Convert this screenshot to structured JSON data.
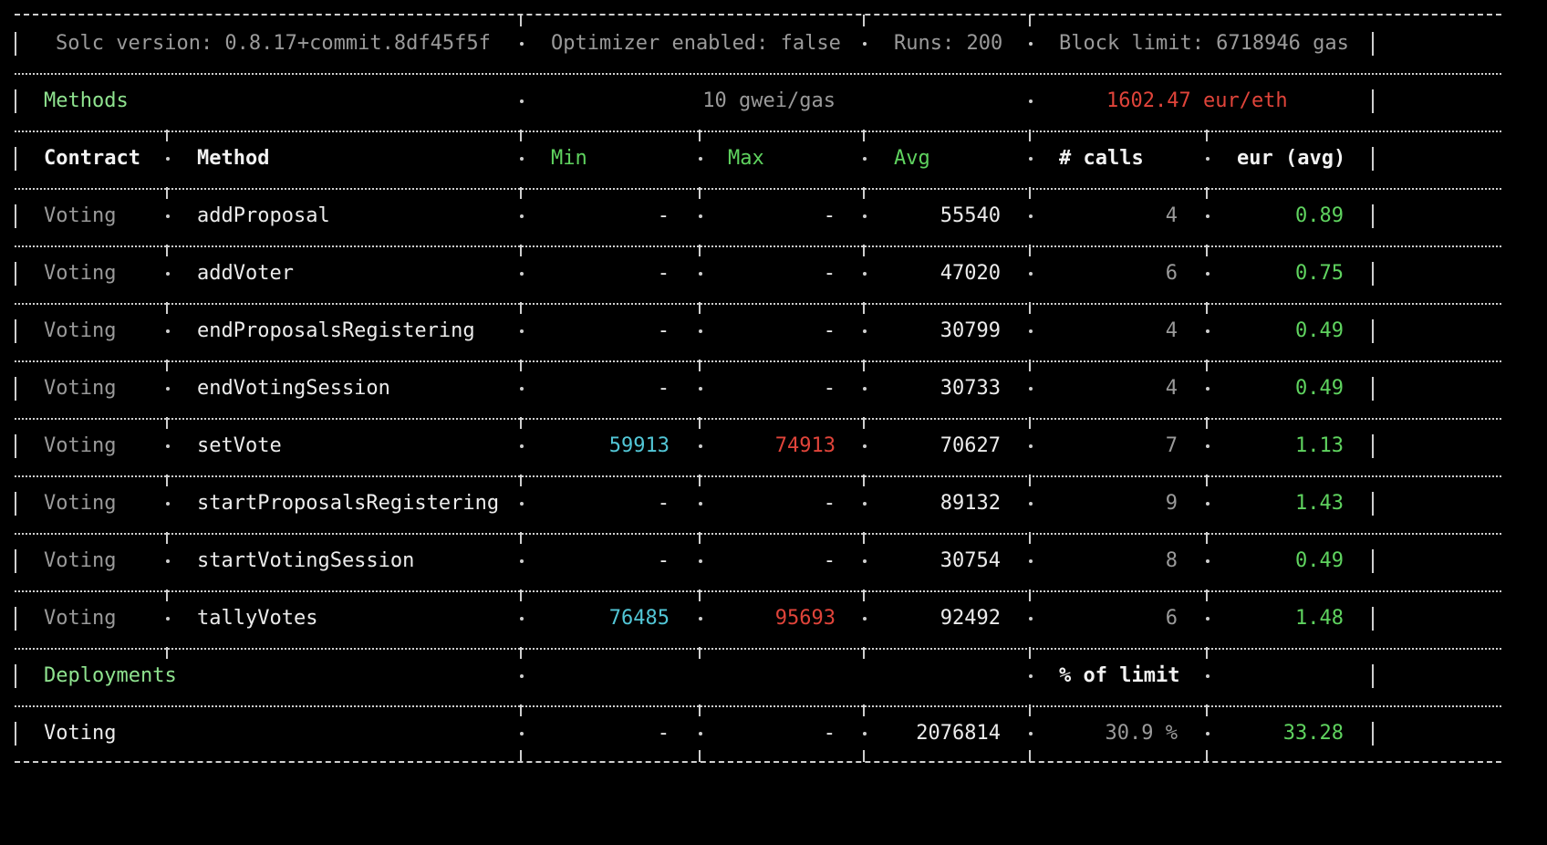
{
  "colors": {
    "background": "#000000",
    "border": "#cfcfcf",
    "dim_text": "#9a9a9a",
    "bright_text": "#ececec",
    "section_green": "#8fe38f",
    "gas_green": "#5fd35f",
    "price_red": "#e0443a",
    "min_cyan": "#52c6d6",
    "max_red": "#e0443a",
    "cost_green": "#5fd35f"
  },
  "config": {
    "solc": "Solc version: 0.8.17+commit.8df45f5f",
    "optimizer": "Optimizer enabled: false",
    "runs": "Runs: 200",
    "block_limit": "Block limit: 6718946 gas"
  },
  "methods_section": {
    "title": "Methods",
    "gas_price": "10 gwei/gas",
    "eth_price": "1602.47 eur/eth"
  },
  "columns": {
    "contract": "Contract",
    "method": "Method",
    "min": "Min",
    "max": "Max",
    "avg": "Avg",
    "calls": "# calls",
    "cost": "eur (avg)"
  },
  "rows": [
    {
      "contract": "Voting",
      "method": "addProposal",
      "min": "-",
      "max": "-",
      "avg": "55540",
      "calls": "4",
      "cost": "0.89"
    },
    {
      "contract": "Voting",
      "method": "addVoter",
      "min": "-",
      "max": "-",
      "avg": "47020",
      "calls": "6",
      "cost": "0.75"
    },
    {
      "contract": "Voting",
      "method": "endProposalsRegistering",
      "min": "-",
      "max": "-",
      "avg": "30799",
      "calls": "4",
      "cost": "0.49"
    },
    {
      "contract": "Voting",
      "method": "endVotingSession",
      "min": "-",
      "max": "-",
      "avg": "30733",
      "calls": "4",
      "cost": "0.49"
    },
    {
      "contract": "Voting",
      "method": "setVote",
      "min": "59913",
      "max": "74913",
      "avg": "70627",
      "calls": "7",
      "cost": "1.13"
    },
    {
      "contract": "Voting",
      "method": "startProposalsRegistering",
      "min": "-",
      "max": "-",
      "avg": "89132",
      "calls": "9",
      "cost": "1.43"
    },
    {
      "contract": "Voting",
      "method": "startVotingSession",
      "min": "-",
      "max": "-",
      "avg": "30754",
      "calls": "8",
      "cost": "0.49"
    },
    {
      "contract": "Voting",
      "method": "tallyVotes",
      "min": "76485",
      "max": "95693",
      "avg": "92492",
      "calls": "6",
      "cost": "1.48"
    }
  ],
  "deployments_section": {
    "title": "Deployments",
    "limit_header": "% of limit"
  },
  "deployments": [
    {
      "contract": "Voting",
      "min": "-",
      "max": "-",
      "avg": "2076814",
      "limit": "30.9 %",
      "cost": "33.28"
    }
  ]
}
